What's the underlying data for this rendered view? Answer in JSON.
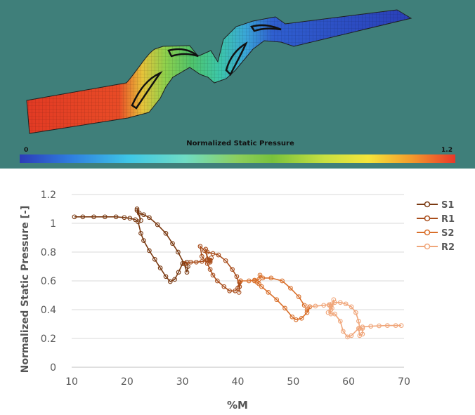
{
  "contour_panel": {
    "background": "#3f7f7a",
    "colorbar": {
      "title": "Normalized Static Pressure",
      "min_label": "0",
      "max_label": "1.2",
      "colors": [
        "#2c3cb8",
        "#2f7fe0",
        "#3ec6e6",
        "#6fdcc4",
        "#8ccf5c",
        "#78c23c",
        "#c8e040",
        "#f5e53a",
        "#f39a2c",
        "#e8382a"
      ]
    }
  },
  "chart_data": {
    "type": "scatter",
    "mode": "lines+markers",
    "title": "",
    "xlabel": "%M",
    "ylabel": "Normalized Static Pressure [-]",
    "xlim": [
      10,
      70
    ],
    "ylim": [
      0,
      1.2
    ],
    "xticks": [
      "10",
      "20",
      "30",
      "40",
      "50",
      "60",
      "70"
    ],
    "yticks": [
      "0",
      "0.2",
      "0.4",
      "0.6",
      "0.8",
      "1",
      "1.2"
    ],
    "grid": "horizontal",
    "legend_position": "right",
    "series": [
      {
        "name": "S1",
        "color": "#7a3a12",
        "segments": [
          [
            [
              10.5,
              1.045
            ],
            [
              12,
              1.045
            ],
            [
              14,
              1.045
            ],
            [
              16,
              1.045
            ],
            [
              18,
              1.045
            ],
            [
              19.5,
              1.04
            ],
            [
              20.5,
              1.035
            ],
            [
              21.5,
              1.025
            ],
            [
              22,
              1.01
            ],
            [
              22.5,
              0.93
            ],
            [
              23,
              0.88
            ],
            [
              24,
              0.81
            ],
            [
              25,
              0.75
            ],
            [
              26,
              0.69
            ],
            [
              27,
              0.63
            ],
            [
              27.8,
              0.595
            ],
            [
              28.6,
              0.61
            ],
            [
              29.3,
              0.66
            ],
            [
              30,
              0.72
            ],
            [
              30.8,
              0.73
            ],
            [
              31,
              0.7
            ],
            [
              30.8,
              0.66
            ],
            [
              30.3,
              0.72
            ],
            [
              29.2,
              0.8
            ],
            [
              28.2,
              0.86
            ],
            [
              27,
              0.93
            ],
            [
              25.5,
              0.99
            ],
            [
              24,
              1.04
            ],
            [
              23,
              1.06
            ],
            [
              22.2,
              1.07
            ],
            [
              21.8,
              1.1
            ],
            [
              22.5,
              1.02
            ],
            [
              21.8,
              1.09
            ]
          ]
        ]
      },
      {
        "name": "R1",
        "color": "#a94e1c",
        "segments": [
          [
            [
              30.5,
              0.72
            ],
            [
              31.5,
              0.73
            ],
            [
              32.5,
              0.73
            ],
            [
              33.5,
              0.735
            ],
            [
              34.5,
              0.74
            ],
            [
              35,
              0.745
            ],
            [
              35.2,
              0.76
            ],
            [
              35,
              0.73
            ],
            [
              34,
              0.81
            ],
            [
              33.2,
              0.84
            ],
            [
              33.5,
              0.77
            ],
            [
              34.5,
              0.72
            ],
            [
              35,
              0.68
            ],
            [
              35.5,
              0.64
            ],
            [
              36.3,
              0.6
            ],
            [
              37.5,
              0.56
            ],
            [
              38.5,
              0.53
            ],
            [
              39.5,
              0.53
            ],
            [
              40,
              0.55
            ],
            [
              40.3,
              0.59
            ],
            [
              40.5,
              0.6
            ],
            [
              40.2,
              0.52
            ],
            [
              40.3,
              0.56
            ],
            [
              39.8,
              0.63
            ],
            [
              39,
              0.68
            ],
            [
              37.8,
              0.74
            ],
            [
              36.5,
              0.78
            ],
            [
              35.5,
              0.79
            ],
            [
              34.5,
              0.8
            ],
            [
              34.2,
              0.82
            ],
            [
              34.5,
              0.75
            ],
            [
              35,
              0.74
            ]
          ]
        ]
      },
      {
        "name": "S2",
        "color": "#d96f2a",
        "segments": [
          [
            [
              40.5,
              0.6
            ],
            [
              42,
              0.6
            ],
            [
              43,
              0.605
            ],
            [
              43.8,
              0.61
            ],
            [
              44,
              0.64
            ],
            [
              44.5,
              0.62
            ],
            [
              46,
              0.62
            ],
            [
              48,
              0.6
            ],
            [
              49.5,
              0.55
            ],
            [
              51,
              0.49
            ],
            [
              52,
              0.43
            ],
            [
              52.5,
              0.4
            ],
            [
              53,
              0.42
            ],
            [
              52.5,
              0.38
            ],
            [
              51.5,
              0.34
            ],
            [
              50.5,
              0.33
            ],
            [
              49.8,
              0.35
            ],
            [
              48.5,
              0.41
            ],
            [
              47,
              0.47
            ],
            [
              45.5,
              0.52
            ],
            [
              44.3,
              0.56
            ],
            [
              43.8,
              0.58
            ],
            [
              43.5,
              0.59
            ],
            [
              43,
              0.6
            ]
          ]
        ]
      },
      {
        "name": "R2",
        "color": "#f0a67a",
        "segments": [
          [
            [
              52.5,
              0.42
            ],
            [
              54,
              0.425
            ],
            [
              55.5,
              0.43
            ],
            [
              56.5,
              0.435
            ],
            [
              57,
              0.44
            ],
            [
              57.5,
              0.45
            ],
            [
              58.5,
              0.45
            ],
            [
              59.5,
              0.44
            ],
            [
              60.5,
              0.42
            ],
            [
              61.3,
              0.38
            ],
            [
              61.8,
              0.32
            ],
            [
              62,
              0.27
            ],
            [
              62.5,
              0.27
            ],
            [
              62.5,
              0.23
            ],
            [
              62,
              0.22
            ],
            [
              61.8,
              0.27
            ],
            [
              60.5,
              0.22
            ],
            [
              59.8,
              0.21
            ],
            [
              59,
              0.25
            ],
            [
              58.5,
              0.32
            ],
            [
              57.5,
              0.37
            ],
            [
              56.8,
              0.37
            ],
            [
              56.5,
              0.43
            ],
            [
              57,
              0.41
            ],
            [
              57.3,
              0.47
            ],
            [
              56.8,
              0.4
            ],
            [
              56.3,
              0.38
            ]
          ],
          [
            [
              62.5,
              0.28
            ],
            [
              64,
              0.285
            ],
            [
              65.5,
              0.288
            ],
            [
              67,
              0.29
            ],
            [
              68.5,
              0.29
            ],
            [
              69.5,
              0.29
            ]
          ]
        ]
      }
    ]
  }
}
